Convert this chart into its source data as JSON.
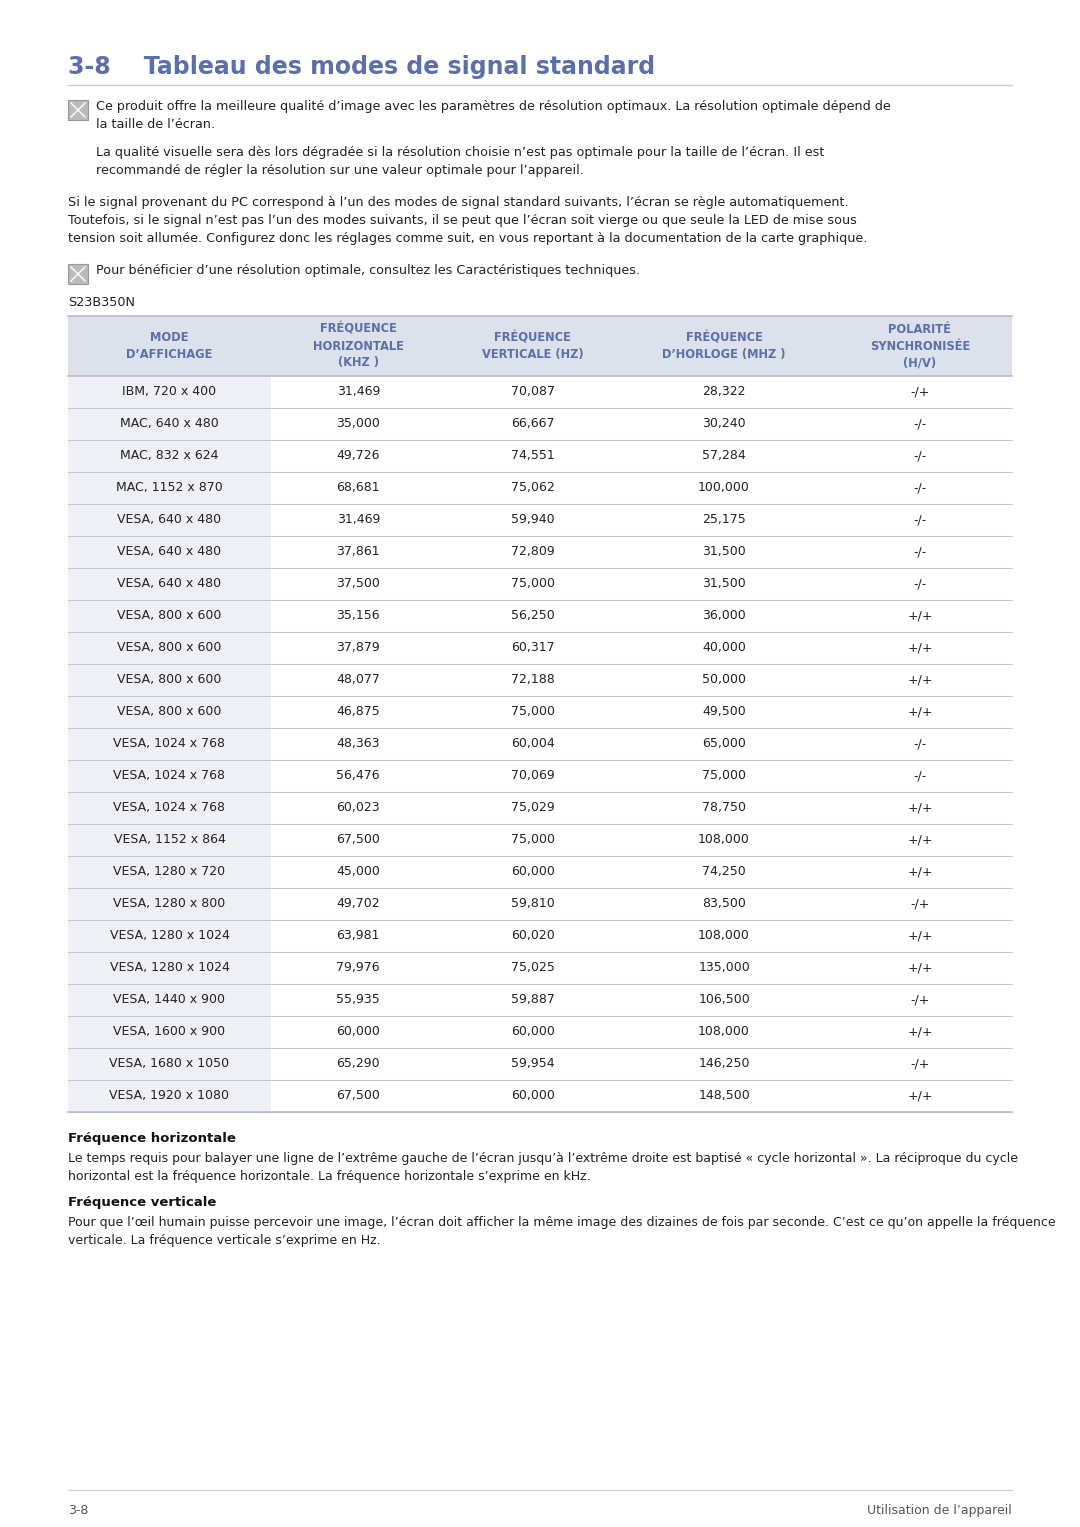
{
  "title": "3-8    Tableau des modes de signal standard",
  "title_color": "#5b6fa8",
  "bg_color": "#ffffff",
  "note1_text": "Ce produit offre la meilleure qualité d’image avec les paramètres de résolution optimaux. La résolution optimale dépend de\nla taille de l’écran.",
  "note2_text": "La qualité visuelle sera dès lors dégradée si la résolution choisie n’est pas optimale pour la taille de l’écran. Il est\nrecommandé de régler la résolution sur une valeur optimale pour l’appareil.",
  "para1_text": "Si le signal provenant du PC correspond à l’un des modes de signal standard suivants, l’écran se règle automatiquement.\nToutefois, si le signal n’est pas l’un des modes suivants, il se peut que l’écran soit vierge ou que seule la LED de mise sous\ntension soit allumée. Configurez donc les réglages comme suit, en vous reportant à la documentation de la carte graphique.",
  "note3_text": "Pour bénéficier d’une résolution optimale, consultez les Caractéristiques techniques.",
  "model_label": "S23B350N",
  "table_header": [
    "MODE\nD’AFFICHAGE",
    "FRÉQUENCE\nHORIZONTALE\n(KHZ )",
    "FRÉQUENCE\nVERTICALE (HZ)",
    "FRÉQUENCE\nD’HORLOGE (MHZ )",
    "POLARITÉ\nSYNCHRONISÉE\n(H/V)"
  ],
  "table_header_color": "#5b6fa8",
  "table_header_bg": "#dde1ec",
  "table_row_alt_bg": "#eef0f6",
  "table_row_bg": "#ffffff",
  "table_border_color": "#b8bcd0",
  "table_data": [
    [
      "IBM, 720 x 400",
      "31,469",
      "70,087",
      "28,322",
      "-/+"
    ],
    [
      "MAC, 640 x 480",
      "35,000",
      "66,667",
      "30,240",
      "-/-"
    ],
    [
      "MAC, 832 x 624",
      "49,726",
      "74,551",
      "57,284",
      "-/-"
    ],
    [
      "MAC, 1152 x 870",
      "68,681",
      "75,062",
      "100,000",
      "-/-"
    ],
    [
      "VESA, 640 x 480",
      "31,469",
      "59,940",
      "25,175",
      "-/-"
    ],
    [
      "VESA, 640 x 480",
      "37,861",
      "72,809",
      "31,500",
      "-/-"
    ],
    [
      "VESA, 640 x 480",
      "37,500",
      "75,000",
      "31,500",
      "-/-"
    ],
    [
      "VESA, 800 x 600",
      "35,156",
      "56,250",
      "36,000",
      "+/+"
    ],
    [
      "VESA, 800 x 600",
      "37,879",
      "60,317",
      "40,000",
      "+/+"
    ],
    [
      "VESA, 800 x 600",
      "48,077",
      "72,188",
      "50,000",
      "+/+"
    ],
    [
      "VESA, 800 x 600",
      "46,875",
      "75,000",
      "49,500",
      "+/+"
    ],
    [
      "VESA, 1024 x 768",
      "48,363",
      "60,004",
      "65,000",
      "-/-"
    ],
    [
      "VESA, 1024 x 768",
      "56,476",
      "70,069",
      "75,000",
      "-/-"
    ],
    [
      "VESA, 1024 x 768",
      "60,023",
      "75,029",
      "78,750",
      "+/+"
    ],
    [
      "VESA, 1152 x 864",
      "67,500",
      "75,000",
      "108,000",
      "+/+"
    ],
    [
      "VESA, 1280 x 720",
      "45,000",
      "60,000",
      "74,250",
      "+/+"
    ],
    [
      "VESA, 1280 x 800",
      "49,702",
      "59,810",
      "83,500",
      "-/+"
    ],
    [
      "VESA, 1280 x 1024",
      "63,981",
      "60,020",
      "108,000",
      "+/+"
    ],
    [
      "VESA, 1280 x 1024",
      "79,976",
      "75,025",
      "135,000",
      "+/+"
    ],
    [
      "VESA, 1440 x 900",
      "55,935",
      "59,887",
      "106,500",
      "-/+"
    ],
    [
      "VESA, 1600 x 900",
      "60,000",
      "60,000",
      "108,000",
      "+/+"
    ],
    [
      "VESA, 1680 x 1050",
      "65,290",
      "59,954",
      "146,250",
      "-/+"
    ],
    [
      "VESA, 1920 x 1080",
      "67,500",
      "60,000",
      "148,500",
      "+/+"
    ]
  ],
  "footer_left": "3-8",
  "footer_right": "Utilisation de l’appareil",
  "freq_h_title": "Fréquence horizontale",
  "freq_h_text": "Le temps requis pour balayer une ligne de l’extrême gauche de l’écran jusqu’à l’extrême droite est baptisé « cycle horizontal ». La réciproque du cycle horizontal est la fréquence horizontale. La fréquence horizontale s’exprime en kHz.",
  "freq_v_title": "Fréquence verticale",
  "freq_v_text": "Pour que l’œil humain puisse percevoir une image, l’écran doit afficher la même image des dizaines de fois par seconde. C’est ce qu’on appelle la fréquence verticale. La fréquence verticale s’exprime en Hz."
}
